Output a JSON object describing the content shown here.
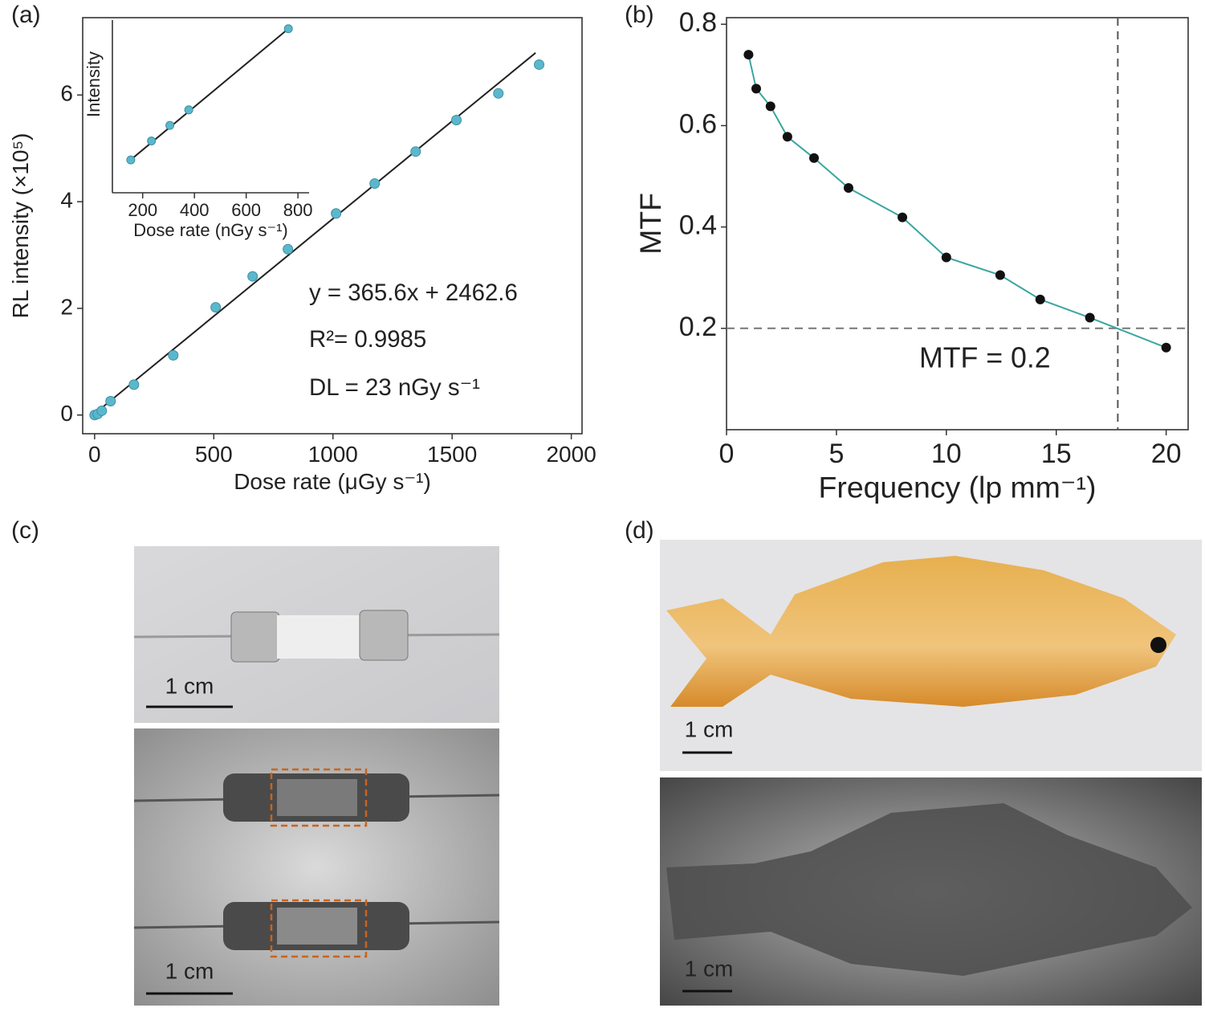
{
  "chart_data": [
    {
      "type": "scatter",
      "panel_label": "(a)",
      "x_label": "Dose rate (μGy s⁻¹)",
      "y_label": "RL intensity (×10⁵)",
      "x": [
        0,
        13,
        30,
        67,
        165,
        330,
        508,
        663,
        811,
        1013,
        1175,
        1347,
        1518,
        1694,
        1865
      ],
      "values": [
        0,
        0.02,
        0.08,
        0.26,
        0.57,
        1.12,
        2.02,
        2.6,
        3.11,
        3.78,
        4.34,
        4.94,
        5.53,
        6.03,
        6.57
      ],
      "color": "#5bb8cc",
      "fit_line": {
        "x": [
          0,
          1850
        ],
        "y": [
          0.025,
          6.79
        ],
        "color": "#222"
      },
      "annotations": [
        "y = 365.6x + 2462.6",
        "R²= 0.9985",
        "DL = 23 nGy s⁻¹"
      ],
      "xlim": [
        -50,
        2045
      ],
      "ylim": [
        -0.35,
        7.45
      ],
      "xticks": [
        0,
        500,
        1000,
        1500,
        2000
      ],
      "yticks": [
        0,
        2,
        4,
        6
      ]
    },
    {
      "type": "scatter",
      "x_label": "Dose rate (nGy s⁻¹)",
      "y_label": "Intensity",
      "x": [
        154,
        234,
        305,
        378,
        763
      ],
      "values": [
        19,
        30,
        39,
        48,
        95
      ],
      "color": "#5bb8cc",
      "fit_line": {
        "x": [
          145,
          763
        ],
        "y": [
          18,
          95
        ],
        "color": "#222"
      },
      "xlim": [
        83,
        843
      ],
      "ylim": [
        0,
        100
      ],
      "xticks": [
        200,
        400,
        600,
        800
      ]
    },
    {
      "type": "line",
      "panel_label": "(b)",
      "x_label": "Frequency (lp mm⁻¹)",
      "y_label": "MTF",
      "x": [
        1,
        1.35,
        2,
        2.77,
        3.98,
        5.55,
        8,
        10,
        12.45,
        14.27,
        16.53,
        20
      ],
      "values": [
        0.74,
        0.673,
        0.638,
        0.578,
        0.536,
        0.477,
        0.419,
        0.34,
        0.305,
        0.257,
        0.221,
        0.162
      ],
      "color": "#3aa6a0",
      "marker_color": "#111",
      "reference_lines": {
        "y": 0.2,
        "x": 17.8
      },
      "annotations": [
        "MTF = 0.2"
      ],
      "xlim": [
        0,
        21
      ],
      "ylim": [
        0,
        0.813
      ],
      "xticks": [
        0,
        5,
        10,
        15,
        20
      ],
      "yticks": [
        0.2,
        0.4,
        0.6,
        0.8
      ]
    }
  ],
  "photos": [
    {
      "label": "(c)",
      "scale_bars": [
        "1 cm",
        "1 cm"
      ]
    },
    {
      "label": "(d)",
      "scale_bars": [
        "1 cm",
        "1 cm"
      ]
    }
  ]
}
